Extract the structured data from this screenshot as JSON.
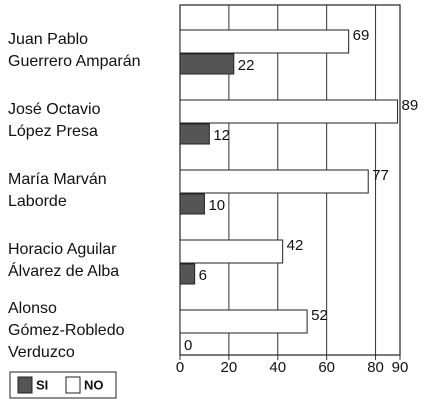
{
  "chart_data": {
    "type": "bar",
    "orientation": "horizontal",
    "categories": [
      "Juan Pablo\nGuerrero Amparán",
      "José Octavio\nLópez Presa",
      "María Marván\nLaborde",
      "Horacio Aguilar\nÁlvarez de Alba",
      "Alonso\nGómez-Robledo\nVerduzco"
    ],
    "series": [
      {
        "name": "SI",
        "color": "#555555",
        "values": [
          22,
          12,
          10,
          6,
          0
        ]
      },
      {
        "name": "NO",
        "color": "#ffffff",
        "values": [
          69,
          89,
          77,
          42,
          52
        ]
      }
    ],
    "xlim": [
      0,
      90
    ],
    "xticks": [
      0,
      20,
      40,
      60,
      80,
      90
    ],
    "grid": true,
    "legend": "bottom-left"
  }
}
